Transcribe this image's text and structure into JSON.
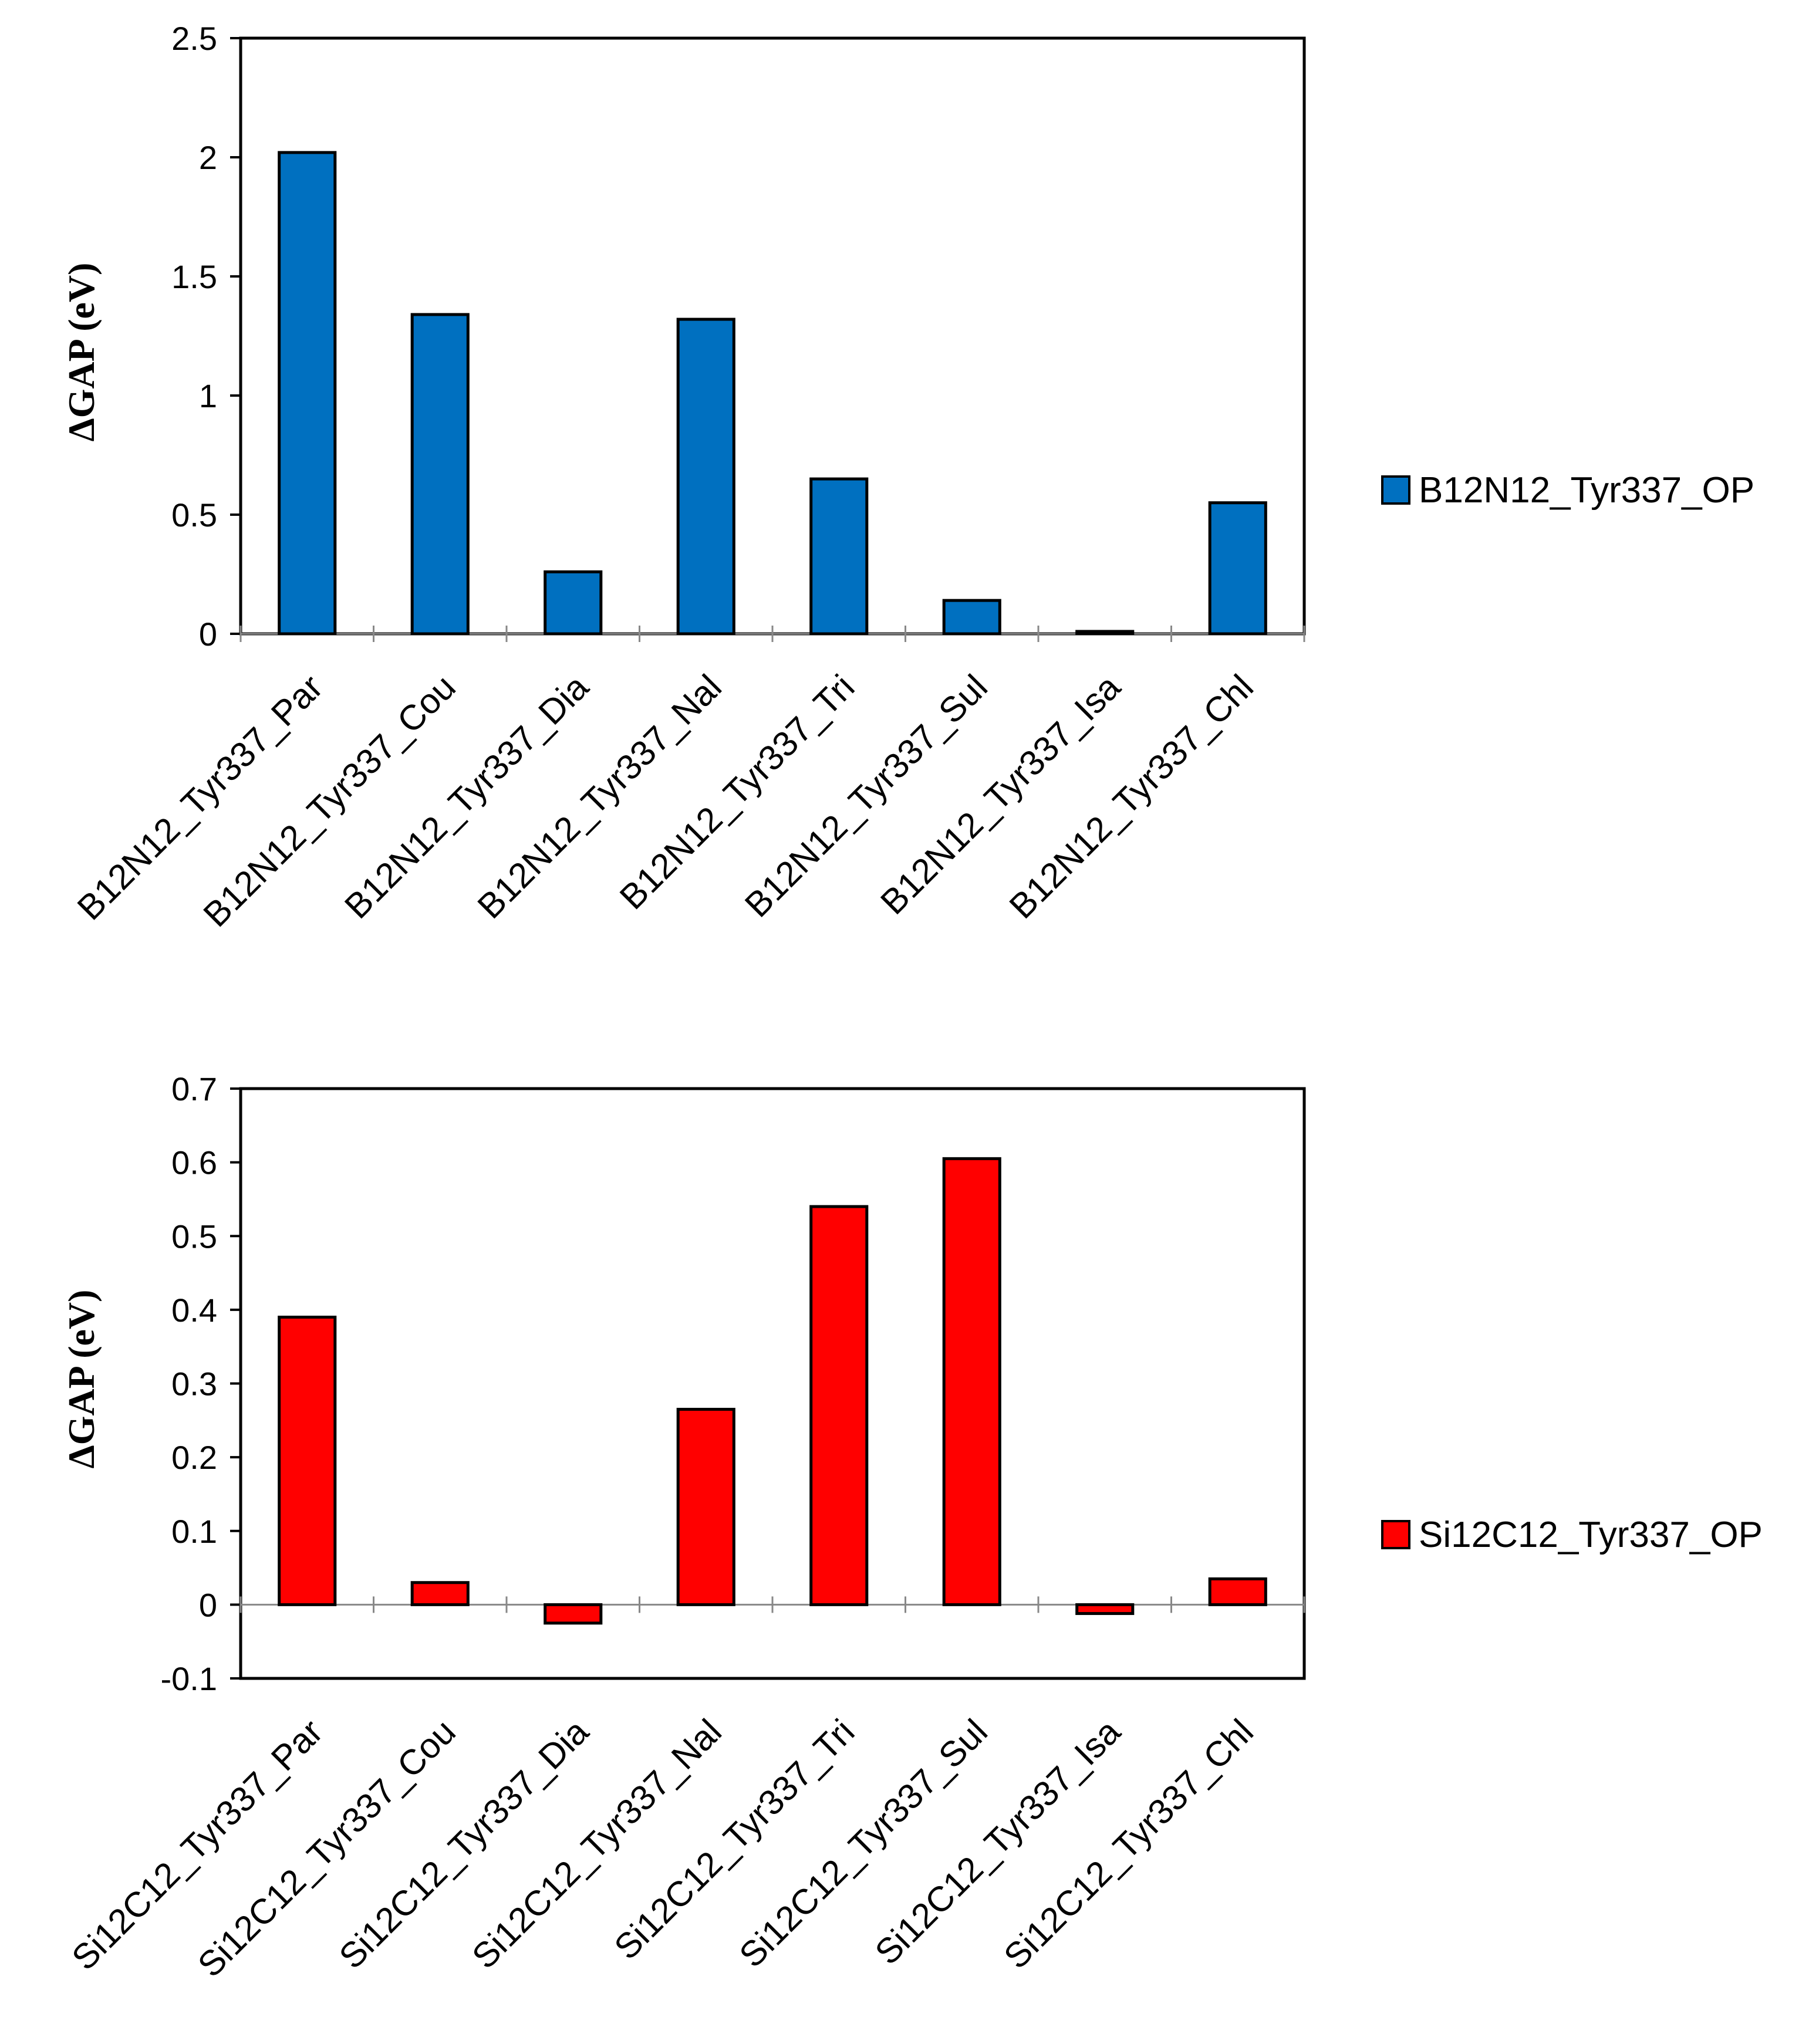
{
  "chart_data": [
    {
      "type": "bar",
      "title": "",
      "xlabel": "",
      "ylabel": "ΔGAP (eV)",
      "ylim": [
        0,
        2.5
      ],
      "yticks": [
        "2.5",
        "2",
        "1.5",
        "1",
        "0.5",
        "0"
      ],
      "ytick_values": [
        2.5,
        2,
        1.5,
        1,
        0.5,
        0
      ],
      "grid": false,
      "legend_position": "right",
      "categories": [
        "B12N12_Tyr337_Par",
        "B12N12_Tyr337_Cou",
        "B12N12_Tyr337_Dia",
        "B12N12_Tyr337_Nal",
        "B12N12_Tyr337_Tri",
        "B12N12_Tyr337_Sul",
        "B12N12_Tyr337_Isa",
        "B12N12_Tyr337_Chl"
      ],
      "series": [
        {
          "name": "B12N12_Tyr337_OP",
          "color": "#0070C0",
          "values": [
            2.02,
            1.34,
            0.26,
            1.32,
            0.65,
            0.14,
            0.01,
            0.55
          ]
        }
      ]
    },
    {
      "type": "bar",
      "title": "",
      "xlabel": "",
      "ylabel": "ΔGAP (eV)",
      "ylim": [
        -0.1,
        0.7
      ],
      "yticks": [
        "0.7",
        "0.6",
        "0.5",
        "0.4",
        "0.3",
        "0.2",
        "0.1",
        "0",
        "-0.1"
      ],
      "ytick_values": [
        0.7,
        0.6,
        0.5,
        0.4,
        0.3,
        0.2,
        0.1,
        0,
        -0.1
      ],
      "grid": false,
      "legend_position": "right",
      "categories": [
        "Si12C12_Tyr337_Par",
        "Si12C12_Tyr337_Cou",
        "Si12C12_Tyr337_Dia",
        "Si12C12_Tyr337_Nal",
        "Si12C12_Tyr337_Tri",
        "Si12C12_Tyr337_Sul",
        "Si12C12_Tyr337_Isa",
        "Si12C12_Tyr337_Chl"
      ],
      "series": [
        {
          "name": "Si12C12_Tyr337_OP",
          "color": "#FF0000",
          "values": [
            0.39,
            0.03,
            -0.025,
            0.265,
            0.54,
            0.605,
            -0.012,
            0.035
          ]
        }
      ]
    }
  ]
}
